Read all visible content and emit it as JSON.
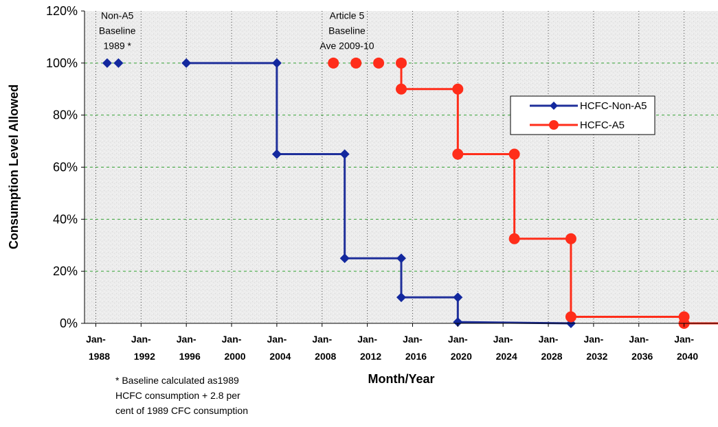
{
  "chart_data": {
    "type": "line",
    "xlabel": "Month/Year",
    "ylabel": "Consumption Level Allowed",
    "xlim": [
      1987,
      2043
    ],
    "ylim": [
      0,
      120
    ],
    "y_ticks": [
      0,
      20,
      40,
      60,
      80,
      100,
      120
    ],
    "y_tick_labels": [
      "0%",
      "20%",
      "40%",
      "60%",
      "80%",
      "100%",
      "120%"
    ],
    "x_ticks": [
      1988,
      1992,
      1996,
      2000,
      2004,
      2008,
      2012,
      2016,
      2020,
      2024,
      2028,
      2032,
      2036,
      2040
    ],
    "x_tick_labels": [
      [
        "Jan-",
        "1988"
      ],
      [
        "Jan-",
        "1992"
      ],
      [
        "Jan-",
        "1996"
      ],
      [
        "Jan-",
        "2000"
      ],
      [
        "Jan-",
        "2004"
      ],
      [
        "Jan-",
        "2008"
      ],
      [
        "Jan-",
        "2012"
      ],
      [
        "Jan-",
        "2016"
      ],
      [
        "Jan-",
        "2020"
      ],
      [
        "Jan-",
        "2024"
      ],
      [
        "Jan-",
        "2028"
      ],
      [
        "Jan-",
        "2032"
      ],
      [
        "Jan-",
        "2036"
      ],
      [
        "Jan-",
        "2040"
      ]
    ],
    "grid": true,
    "legend_position": "right",
    "series": [
      {
        "name": "HCFC-Non-A5",
        "color": "#1f2f9a",
        "marker": "diamond",
        "marker_color": "#13289e",
        "x": [
          1989,
          1990,
          1996,
          2004,
          2004,
          2010,
          2010,
          2015,
          2015,
          2020,
          2020,
          2030
        ],
        "y": [
          100,
          100,
          100,
          100,
          65,
          65,
          25,
          25,
          10,
          10,
          0.5,
          0
        ],
        "step_from_index": 2
      },
      {
        "name": "HCFC-A5",
        "color": "#ff2d1a",
        "marker": "circle",
        "marker_color": "#ff2d1a",
        "x": [
          2009,
          2011,
          2013,
          2015,
          2015,
          2020,
          2020,
          2025,
          2025,
          2030,
          2030,
          2040,
          2040
        ],
        "y": [
          100,
          100,
          100,
          100,
          90,
          90,
          65,
          65,
          32.5,
          32.5,
          2.5,
          2.5,
          0
        ],
        "step_from_index": 3,
        "line_end_x": 2043,
        "line_end_y": 0
      }
    ],
    "annotations": [
      {
        "lines": [
          "Non-A5",
          "Baseline",
          "1989 *"
        ],
        "x": 1989.9,
        "y": 117
      },
      {
        "lines": [
          "Article 5",
          "Baseline",
          "Ave 2009-10"
        ],
        "x": 2010.2,
        "y": 117
      }
    ],
    "footnote": [
      "* Baseline calculated as1989",
      "HCFC consumption + 2.8 per",
      "cent of 1989 CFC consumption"
    ]
  }
}
